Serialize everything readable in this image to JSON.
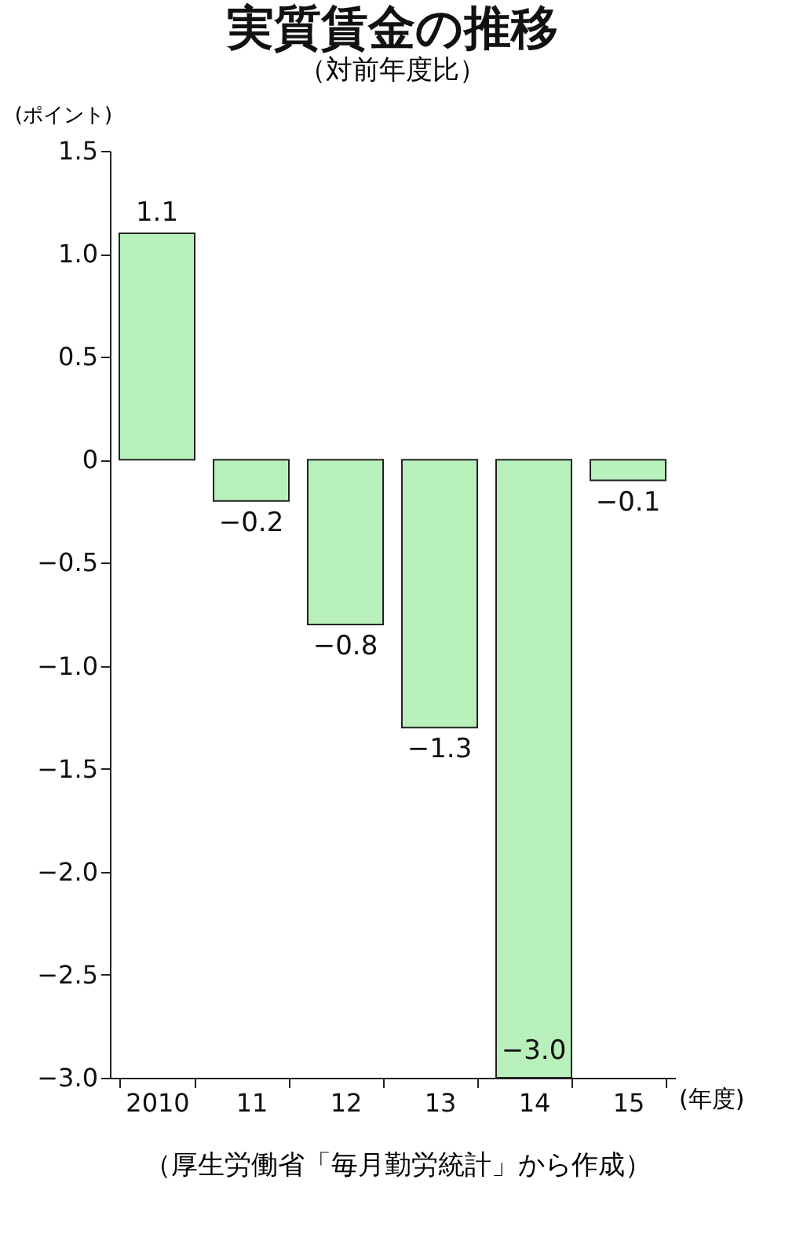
{
  "chart_data": {
    "type": "bar",
    "title": "実質賃金の推移",
    "subtitle": "（対前年度比）",
    "ylabel": "(ポイント)",
    "xlabel": "(年度)",
    "categories": [
      "2010",
      "11",
      "12",
      "13",
      "14",
      "15"
    ],
    "values": [
      1.1,
      -0.2,
      -0.8,
      -1.3,
      -3.0,
      -0.1
    ],
    "value_labels": [
      "1.1",
      "−0.2",
      "−0.8",
      "−1.3",
      "−3.0",
      "−0.1"
    ],
    "color": "#b8f0bc",
    "ylim": [
      -3.0,
      1.5
    ],
    "yticks": [
      {
        "value": 1.5,
        "label": "1.5"
      },
      {
        "value": 1.0,
        "label": "1.0"
      },
      {
        "value": 0.5,
        "label": "0.5"
      },
      0,
      {
        "value": -0.5,
        "label": "−0.5"
      },
      {
        "value": -1.0,
        "label": "−1.0"
      },
      {
        "value": -1.5,
        "label": "−1.5"
      },
      {
        "value": -2.0,
        "label": "−2.0"
      },
      {
        "value": -2.5,
        "label": "−2.5"
      },
      {
        "value": -3.0,
        "label": "−3.0"
      }
    ],
    "grid": false,
    "annotations": [
      "（厚生労働省「毎月勤労統計」から作成）"
    ]
  }
}
